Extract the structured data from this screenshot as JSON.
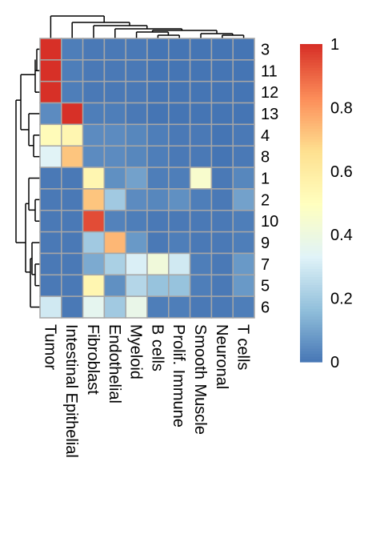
{
  "chart_data": {
    "type": "heatmap",
    "title": "",
    "columns": [
      "Tumor",
      "Intestinal Epithelial",
      "Fibroblast",
      "Endothelial",
      "Myeloid",
      "B cells",
      "Prolif. Immune",
      "Smooth Muscle",
      "Neuronal",
      "T cells"
    ],
    "rows": [
      "3",
      "11",
      "12",
      "13",
      "4",
      "8",
      "1",
      "2",
      "10",
      "9",
      "7",
      "5",
      "6"
    ],
    "values": [
      [
        1.0,
        0.02,
        0.01,
        0.01,
        0.01,
        0.0,
        0.0,
        0.0,
        0.0,
        0.0
      ],
      [
        1.0,
        0.02,
        0.01,
        0.01,
        0.01,
        0.0,
        0.0,
        0.0,
        0.0,
        0.0
      ],
      [
        1.0,
        0.02,
        0.01,
        0.01,
        0.01,
        0.0,
        0.0,
        0.0,
        0.0,
        0.0
      ],
      [
        0.05,
        1.0,
        0.02,
        0.02,
        0.01,
        0.0,
        0.0,
        0.0,
        0.0,
        0.0
      ],
      [
        0.52,
        0.55,
        0.05,
        0.05,
        0.04,
        0.02,
        0.01,
        0.01,
        0.0,
        0.01
      ],
      [
        0.34,
        0.72,
        0.05,
        0.05,
        0.04,
        0.02,
        0.01,
        0.01,
        0.0,
        0.01
      ],
      [
        0.01,
        0.01,
        0.55,
        0.06,
        0.1,
        0.02,
        0.02,
        0.46,
        0.01,
        0.04
      ],
      [
        0.01,
        0.01,
        0.72,
        0.2,
        0.05,
        0.04,
        0.06,
        0.02,
        0.01,
        0.1
      ],
      [
        0.01,
        0.01,
        0.95,
        0.03,
        0.02,
        0.01,
        0.01,
        0.01,
        0.01,
        0.02
      ],
      [
        0.01,
        0.01,
        0.2,
        0.75,
        0.08,
        0.01,
        0.02,
        0.01,
        0.01,
        0.02
      ],
      [
        0.01,
        0.01,
        0.12,
        0.22,
        0.32,
        0.42,
        0.3,
        0.02,
        0.01,
        0.08
      ],
      [
        0.01,
        0.01,
        0.55,
        0.06,
        0.24,
        0.18,
        0.18,
        0.02,
        0.01,
        0.08
      ],
      [
        0.3,
        0.01,
        0.36,
        0.2,
        0.38,
        0.02,
        0.02,
        0.01,
        0.01,
        0.02
      ]
    ],
    "color_scale": {
      "min": 0,
      "max": 1,
      "ticks": [
        "0",
        "0.2",
        "0.4",
        "0.6",
        "0.8",
        "1"
      ],
      "colors": [
        "#4575b4",
        "#91bfdb",
        "#e0f3f8",
        "#ffffbf",
        "#fee090",
        "#fc8d59",
        "#d73027"
      ]
    },
    "grid_color": "#a6a6a6",
    "row_dendrogram": true,
    "column_dendrogram": true
  }
}
